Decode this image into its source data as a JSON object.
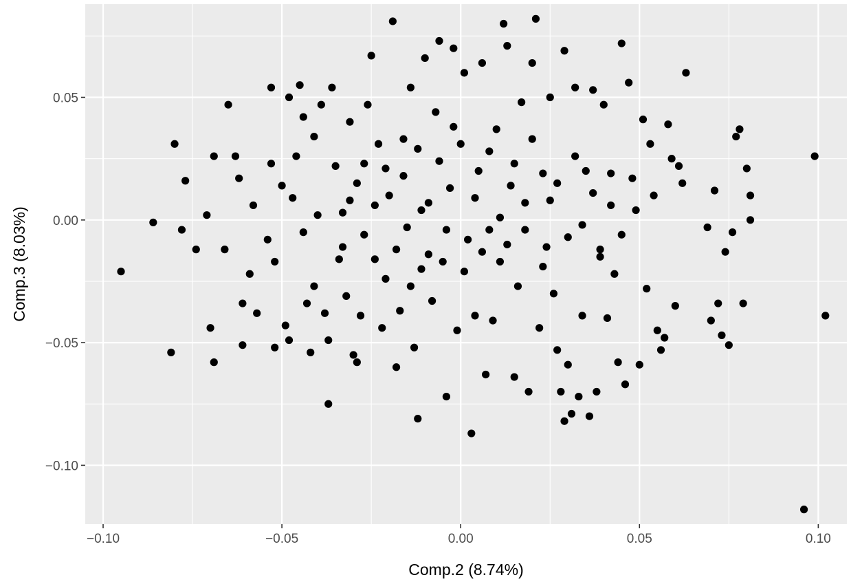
{
  "chart_data": {
    "type": "scatter",
    "title": "",
    "xlabel": "Comp.2 (8.74%)",
    "ylabel": "Comp.3 (8.03%)",
    "xlim": [
      -0.105,
      0.108
    ],
    "ylim": [
      -0.124,
      0.088
    ],
    "x_ticks": [
      -0.1,
      -0.05,
      0.0,
      0.05,
      0.1
    ],
    "x_tick_labels": [
      "−0.10",
      "−0.05",
      "0.00",
      "0.05",
      "0.10"
    ],
    "y_ticks": [
      -0.1,
      -0.05,
      0.0,
      0.05
    ],
    "y_tick_labels": [
      "−0.10",
      "−0.05",
      "0.00",
      "0.05"
    ],
    "grid": true,
    "colors": {
      "panel": "#ebebeb",
      "grid": "#ffffff",
      "point": "#000000"
    },
    "series": [
      {
        "points": [
          [
            -0.095,
            -0.021
          ],
          [
            -0.086,
            -0.001
          ],
          [
            -0.081,
            -0.054
          ],
          [
            -0.08,
            0.031
          ],
          [
            -0.077,
            0.016
          ],
          [
            -0.078,
            -0.004
          ],
          [
            -0.071,
            0.002
          ],
          [
            -0.07,
            -0.044
          ],
          [
            -0.069,
            -0.058
          ],
          [
            -0.069,
            0.026
          ],
          [
            -0.065,
            0.047
          ],
          [
            -0.063,
            0.026
          ],
          [
            -0.062,
            0.017
          ],
          [
            -0.061,
            -0.034
          ],
          [
            -0.061,
            -0.051
          ],
          [
            -0.059,
            -0.022
          ],
          [
            -0.057,
            -0.038
          ],
          [
            -0.053,
            0.023
          ],
          [
            -0.053,
            0.054
          ],
          [
            -0.052,
            -0.052
          ],
          [
            -0.052,
            -0.017
          ],
          [
            -0.05,
            0.014
          ],
          [
            -0.049,
            -0.043
          ],
          [
            -0.048,
            -0.049
          ],
          [
            -0.048,
            0.05
          ],
          [
            -0.046,
            0.026
          ],
          [
            -0.045,
            0.055
          ],
          [
            -0.044,
            0.042
          ],
          [
            -0.043,
            -0.034
          ],
          [
            -0.042,
            -0.054
          ],
          [
            -0.041,
            -0.027
          ],
          [
            -0.04,
            0.002
          ],
          [
            -0.039,
            0.047
          ],
          [
            -0.038,
            -0.038
          ],
          [
            -0.037,
            -0.075
          ],
          [
            -0.037,
            -0.049
          ],
          [
            -0.036,
            0.054
          ],
          [
            -0.035,
            0.022
          ],
          [
            -0.034,
            -0.016
          ],
          [
            -0.033,
            -0.011
          ],
          [
            -0.032,
            -0.031
          ],
          [
            -0.031,
            0.008
          ],
          [
            -0.031,
            0.04
          ],
          [
            -0.03,
            -0.055
          ],
          [
            -0.029,
            -0.058
          ],
          [
            -0.028,
            -0.039
          ],
          [
            -0.027,
            0.023
          ],
          [
            -0.026,
            0.047
          ],
          [
            -0.025,
            0.067
          ],
          [
            -0.024,
            -0.016
          ],
          [
            -0.023,
            0.031
          ],
          [
            -0.022,
            -0.044
          ],
          [
            -0.021,
            -0.024
          ],
          [
            -0.02,
            0.01
          ],
          [
            -0.019,
            0.081
          ],
          [
            -0.018,
            -0.06
          ],
          [
            -0.017,
            -0.037
          ],
          [
            -0.016,
            0.018
          ],
          [
            -0.015,
            -0.003
          ],
          [
            -0.014,
            0.054
          ],
          [
            -0.013,
            -0.052
          ],
          [
            -0.012,
            -0.081
          ],
          [
            -0.012,
            0.029
          ],
          [
            -0.011,
            -0.02
          ],
          [
            -0.01,
            0.066
          ],
          [
            -0.009,
            0.007
          ],
          [
            -0.008,
            -0.033
          ],
          [
            -0.007,
            0.044
          ],
          [
            -0.006,
            0.073
          ],
          [
            -0.005,
            -0.017
          ],
          [
            -0.004,
            -0.072
          ],
          [
            -0.003,
            0.013
          ],
          [
            -0.002,
            0.07
          ],
          [
            -0.001,
            -0.045
          ],
          [
            0.0,
            0.031
          ],
          [
            0.001,
            0.06
          ],
          [
            0.002,
            -0.008
          ],
          [
            0.003,
            -0.087
          ],
          [
            0.004,
            -0.039
          ],
          [
            0.005,
            0.02
          ],
          [
            0.006,
            0.064
          ],
          [
            0.007,
            -0.063
          ],
          [
            0.008,
            -0.004
          ],
          [
            0.009,
            -0.041
          ],
          [
            0.01,
            0.037
          ],
          [
            0.011,
            -0.017
          ],
          [
            0.012,
            0.08
          ],
          [
            0.013,
            0.071
          ],
          [
            0.014,
            0.014
          ],
          [
            0.015,
            -0.064
          ],
          [
            0.016,
            -0.027
          ],
          [
            0.017,
            0.048
          ],
          [
            0.018,
            0.007
          ],
          [
            0.019,
            -0.07
          ],
          [
            0.02,
            0.064
          ],
          [
            0.021,
            0.082
          ],
          [
            0.022,
            -0.044
          ],
          [
            0.023,
            0.019
          ],
          [
            0.024,
            -0.011
          ],
          [
            0.025,
            0.05
          ],
          [
            0.026,
            -0.03
          ],
          [
            0.027,
            -0.053
          ],
          [
            0.028,
            -0.07
          ],
          [
            0.029,
            -0.082
          ],
          [
            0.029,
            0.069
          ],
          [
            0.03,
            -0.059
          ],
          [
            0.031,
            -0.079
          ],
          [
            0.032,
            0.054
          ],
          [
            0.033,
            -0.072
          ],
          [
            0.034,
            -0.039
          ],
          [
            0.035,
            0.02
          ],
          [
            0.036,
            -0.08
          ],
          [
            0.037,
            0.053
          ],
          [
            0.038,
            -0.07
          ],
          [
            0.039,
            -0.015
          ],
          [
            0.04,
            0.047
          ],
          [
            0.041,
            -0.04
          ],
          [
            0.042,
            0.019
          ],
          [
            0.043,
            -0.022
          ],
          [
            0.044,
            -0.058
          ],
          [
            0.045,
            0.072
          ],
          [
            0.046,
            -0.067
          ],
          [
            0.047,
            0.056
          ],
          [
            0.048,
            0.017
          ],
          [
            0.049,
            0.004
          ],
          [
            0.05,
            -0.059
          ],
          [
            0.051,
            0.041
          ],
          [
            0.052,
            -0.028
          ],
          [
            0.053,
            0.031
          ],
          [
            0.054,
            0.01
          ],
          [
            0.055,
            -0.045
          ],
          [
            0.056,
            -0.053
          ],
          [
            0.057,
            -0.048
          ],
          [
            0.058,
            0.039
          ],
          [
            0.059,
            0.025
          ],
          [
            0.06,
            -0.035
          ],
          [
            0.061,
            0.022
          ],
          [
            0.062,
            0.015
          ],
          [
            0.063,
            0.06
          ],
          [
            0.069,
            -0.003
          ],
          [
            0.07,
            -0.041
          ],
          [
            0.071,
            0.012
          ],
          [
            0.072,
            -0.034
          ],
          [
            0.073,
            -0.047
          ],
          [
            0.074,
            -0.013
          ],
          [
            0.075,
            -0.051
          ],
          [
            0.076,
            -0.005
          ],
          [
            0.077,
            0.034
          ],
          [
            0.078,
            0.037
          ],
          [
            0.079,
            -0.034
          ],
          [
            0.08,
            0.021
          ],
          [
            0.081,
            0.01
          ],
          [
            0.081,
            0.0
          ],
          [
            0.096,
            -0.118
          ],
          [
            0.099,
            0.026
          ],
          [
            0.102,
            -0.039
          ],
          [
            -0.074,
            -0.012
          ],
          [
            -0.066,
            -0.012
          ],
          [
            -0.058,
            0.006
          ],
          [
            -0.054,
            -0.008
          ],
          [
            -0.047,
            0.009
          ],
          [
            -0.044,
            -0.005
          ],
          [
            -0.041,
            0.034
          ],
          [
            -0.033,
            0.003
          ],
          [
            -0.029,
            0.015
          ],
          [
            -0.027,
            -0.006
          ],
          [
            -0.024,
            0.006
          ],
          [
            -0.021,
            0.021
          ],
          [
            -0.018,
            -0.012
          ],
          [
            -0.016,
            0.033
          ],
          [
            -0.014,
            -0.027
          ],
          [
            -0.011,
            0.004
          ],
          [
            -0.009,
            -0.014
          ],
          [
            -0.006,
            0.024
          ],
          [
            -0.004,
            -0.004
          ],
          [
            -0.002,
            0.038
          ],
          [
            0.001,
            -0.021
          ],
          [
            0.004,
            0.009
          ],
          [
            0.006,
            -0.013
          ],
          [
            0.008,
            0.028
          ],
          [
            0.011,
            0.001
          ],
          [
            0.013,
            -0.01
          ],
          [
            0.015,
            0.023
          ],
          [
            0.018,
            -0.004
          ],
          [
            0.02,
            0.033
          ],
          [
            0.023,
            -0.019
          ],
          [
            0.025,
            0.008
          ],
          [
            0.027,
            0.015
          ],
          [
            0.03,
            -0.007
          ],
          [
            0.032,
            0.026
          ],
          [
            0.034,
            -0.002
          ],
          [
            0.037,
            0.011
          ],
          [
            0.039,
            -0.012
          ],
          [
            0.042,
            0.006
          ],
          [
            0.045,
            -0.006
          ]
        ]
      }
    ]
  }
}
